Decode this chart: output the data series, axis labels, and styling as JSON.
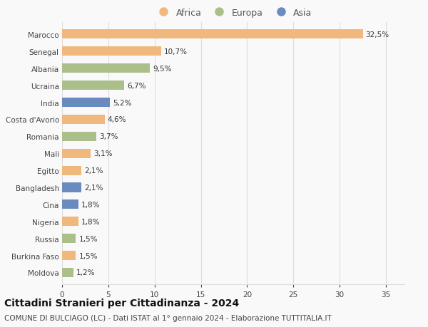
{
  "countries": [
    "Marocco",
    "Senegal",
    "Albania",
    "Ucraina",
    "India",
    "Costa d'Avorio",
    "Romania",
    "Mali",
    "Egitto",
    "Bangladesh",
    "Cina",
    "Nigeria",
    "Russia",
    "Burkina Faso",
    "Moldova"
  ],
  "values": [
    32.5,
    10.7,
    9.5,
    6.7,
    5.2,
    4.6,
    3.7,
    3.1,
    2.1,
    2.1,
    1.8,
    1.8,
    1.5,
    1.5,
    1.2
  ],
  "labels": [
    "32,5%",
    "10,7%",
    "9,5%",
    "6,7%",
    "5,2%",
    "4,6%",
    "3,7%",
    "3,1%",
    "2,1%",
    "2,1%",
    "1,8%",
    "1,8%",
    "1,5%",
    "1,5%",
    "1,2%"
  ],
  "continents": [
    "Africa",
    "Africa",
    "Europa",
    "Europa",
    "Asia",
    "Africa",
    "Europa",
    "Africa",
    "Africa",
    "Asia",
    "Asia",
    "Africa",
    "Europa",
    "Africa",
    "Europa"
  ],
  "continent_colors": {
    "Africa": "#F0B87C",
    "Europa": "#AABF8A",
    "Asia": "#6A8BBF"
  },
  "legend_order": [
    "Africa",
    "Europa",
    "Asia"
  ],
  "title": "Cittadini Stranieri per Cittadinanza - 2024",
  "subtitle": "COMUNE DI BULCIAGO (LC) - Dati ISTAT al 1° gennaio 2024 - Elaborazione TUTTITALIA.IT",
  "xlim": [
    0,
    37
  ],
  "xticks": [
    0,
    5,
    10,
    15,
    20,
    25,
    30,
    35
  ],
  "background_color": "#f9f9f9",
  "grid_color": "#dddddd",
  "label_fontsize": 7.5,
  "tick_fontsize": 7.5,
  "title_fontsize": 10,
  "subtitle_fontsize": 7.5,
  "bar_height": 0.55
}
